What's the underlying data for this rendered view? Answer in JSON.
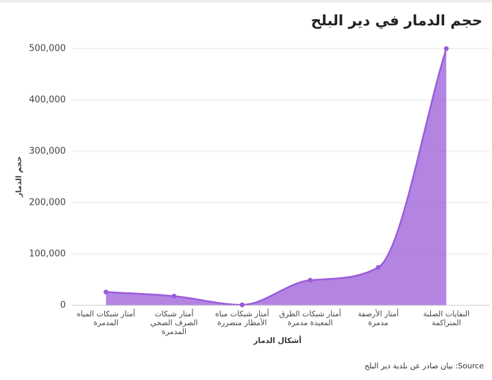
{
  "chart_data": {
    "type": "area",
    "title": "حجم الدمار في دير البلح",
    "x_label": "أشكال الدمار",
    "y_label": "حجم الدمار",
    "source": "Source: بيان صادر عن بلدية دير البلح",
    "categories": [
      "أمتار شبكات المياه المدمرة",
      "أمتار شبكات الصرف الصحي المدمرة",
      "أمتار شبكات مياه الأمطار متضررة",
      "أمتار شبكات الطرق المعيدة مدمرة",
      "أمتار الأرصفة مدمرة",
      "النفايات الصلبة المتراكمة"
    ],
    "values": [
      26000,
      18000,
      1000,
      49000,
      74000,
      500000
    ],
    "color": "#9b5bd9",
    "ylim": [
      0,
      500000
    ],
    "yticks": [
      0,
      {
        "value": 100000,
        "label": "100,000"
      },
      {
        "value": 200000,
        "label": "200,000"
      },
      {
        "value": 300000,
        "label": "300,000"
      },
      {
        "value": 400000,
        "label": "400,000"
      },
      {
        "value": 500000,
        "label": "500,000"
      }
    ],
    "grid": true
  }
}
